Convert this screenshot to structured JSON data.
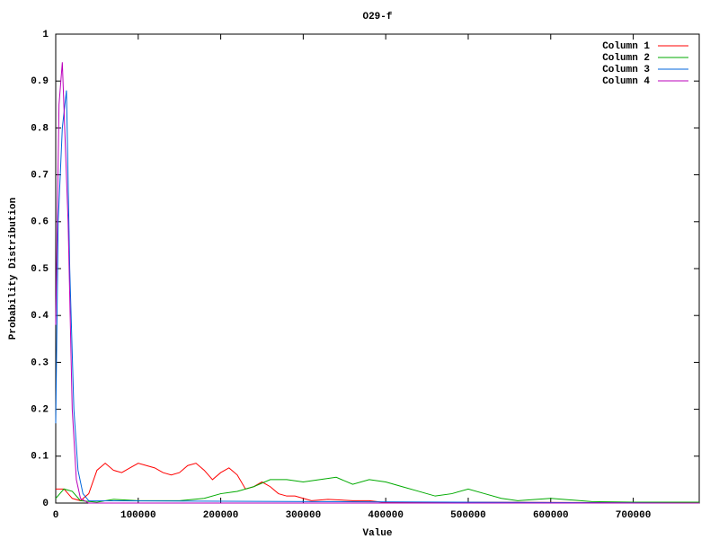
{
  "chart_data": {
    "type": "line",
    "title": "O29-f",
    "x_label": "Value",
    "y_label": "Probability Distribution",
    "xlim": [
      0,
      780000
    ],
    "ylim": [
      0,
      1
    ],
    "xticks": [
      0,
      100000,
      200000,
      300000,
      400000,
      500000,
      600000,
      700000
    ],
    "yticks": [
      0,
      0.1,
      0.2,
      0.3,
      0.4,
      0.5,
      0.6,
      0.7,
      0.8,
      0.9,
      1
    ],
    "legend": "top-right",
    "series": [
      {
        "name": "Column 1",
        "color": "#ff0000",
        "x": [
          0,
          10000,
          20000,
          30000,
          40000,
          50000,
          60000,
          70000,
          80000,
          90000,
          100000,
          110000,
          120000,
          130000,
          140000,
          150000,
          160000,
          170000,
          180000,
          190000,
          200000,
          210000,
          220000,
          230000,
          240000,
          250000,
          260000,
          270000,
          280000,
          290000,
          300000,
          310000,
          330000,
          360000,
          380000,
          400000,
          500000,
          780000
        ],
        "values": [
          0.03,
          0.03,
          0.01,
          0.005,
          0.02,
          0.07,
          0.085,
          0.07,
          0.065,
          0.075,
          0.085,
          0.08,
          0.075,
          0.065,
          0.06,
          0.065,
          0.08,
          0.085,
          0.07,
          0.05,
          0.065,
          0.075,
          0.06,
          0.03,
          0.035,
          0.045,
          0.035,
          0.02,
          0.015,
          0.015,
          0.01,
          0.005,
          0.008,
          0.005,
          0.005,
          0.001,
          0.002,
          0
        ]
      },
      {
        "name": "Column 2",
        "color": "#00aa00",
        "x": [
          0,
          10000,
          20000,
          30000,
          50000,
          70000,
          100000,
          150000,
          180000,
          200000,
          220000,
          240000,
          260000,
          280000,
          300000,
          320000,
          340000,
          360000,
          380000,
          400000,
          420000,
          440000,
          460000,
          480000,
          500000,
          520000,
          540000,
          560000,
          600000,
          650000,
          700000,
          780000
        ],
        "values": [
          0.01,
          0.03,
          0.025,
          0.005,
          0.002,
          0.008,
          0.005,
          0.005,
          0.01,
          0.02,
          0.025,
          0.035,
          0.05,
          0.05,
          0.045,
          0.05,
          0.055,
          0.04,
          0.05,
          0.045,
          0.035,
          0.025,
          0.015,
          0.02,
          0.03,
          0.02,
          0.01,
          0.005,
          0.01,
          0.003,
          0.002,
          0.002
        ]
      },
      {
        "name": "Column 3",
        "color": "#0066dd",
        "x": [
          0,
          3000,
          8000,
          13000,
          17000,
          22000,
          27000,
          33000,
          40000,
          780000
        ],
        "values": [
          0.17,
          0.6,
          0.8,
          0.88,
          0.5,
          0.2,
          0.07,
          0.02,
          0.005,
          0
        ]
      },
      {
        "name": "Column 4",
        "color": "#bb00bb",
        "x": [
          0,
          4000,
          8000,
          15000,
          20000,
          25000,
          30000,
          40000,
          780000
        ],
        "values": [
          0.38,
          0.85,
          0.94,
          0.6,
          0.2,
          0.05,
          0.01,
          0,
          0
        ]
      }
    ]
  }
}
